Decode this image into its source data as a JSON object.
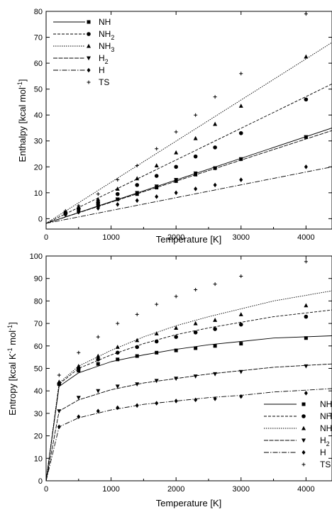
{
  "chart_data": [
    {
      "type": "line",
      "xlabel": "Temperature [K]",
      "ylabel": "Enthalpy [kcal mol",
      "ylabel_sup": "-1",
      "ylabel_end": "]",
      "xlim": [
        0,
        4400
      ],
      "ylim": [
        -4,
        80
      ],
      "xticks": [
        0,
        1000,
        2000,
        3000,
        4000
      ],
      "yticks": [
        0,
        10,
        20,
        30,
        40,
        50,
        60,
        70,
        80
      ],
      "legend_position": "top-left",
      "series": [
        {
          "name": "NH",
          "sub": "",
          "marker": "square",
          "dash": "",
          "x": [
            298,
            500,
            800,
            1100,
            1400,
            1700,
            2000,
            2300,
            2600,
            3000,
            4000
          ],
          "y": [
            2,
            3.2,
            5,
            7.5,
            9.5,
            12,
            14.5,
            17,
            19.5,
            23,
            31.5
          ],
          "line": {
            "x0": 0,
            "y0": -1.8,
            "x1": 4400,
            "y1": 35
          }
        },
        {
          "name": "NH",
          "sub": "2",
          "marker": "circle",
          "dash": "4,2",
          "x": [
            298,
            500,
            800,
            1100,
            1400,
            1700,
            2000,
            2300,
            2600,
            3000,
            4000
          ],
          "y": [
            2.2,
            3.9,
            6.2,
            9.5,
            13,
            16.5,
            20,
            24,
            27.5,
            33,
            46
          ],
          "line": {
            "x0": 0,
            "y0": -1.8,
            "x1": 4400,
            "y1": 52
          }
        },
        {
          "name": "NH",
          "sub": "3",
          "marker": "triangle",
          "dash": "1.5,1.5",
          "x": [
            298,
            500,
            800,
            1100,
            1400,
            1700,
            2000,
            2300,
            2600,
            3000,
            4000
          ],
          "y": [
            2.5,
            4.6,
            7.5,
            11.5,
            15.5,
            20.5,
            25.5,
            31,
            36.5,
            43.5,
            62.5
          ],
          "line": {
            "x0": 0,
            "y0": -1.8,
            "x1": 4400,
            "y1": 68
          }
        },
        {
          "name": "H",
          "sub": "2",
          "marker": "triangle-down",
          "dash": "6,1.5",
          "x": [
            298,
            500,
            800,
            1100,
            1400,
            1700,
            2000,
            2300,
            2600,
            3000,
            4000
          ],
          "y": [
            2,
            3.3,
            5,
            7.5,
            10,
            12.5,
            15,
            17.5,
            19.5,
            23,
            31.5
          ],
          "line": {
            "x0": 0,
            "y0": -1.8,
            "x1": 4400,
            "y1": 34
          }
        },
        {
          "name": "H",
          "sub": "",
          "marker": "diamond",
          "dash": "7,2,1.5,2",
          "x": [
            298,
            500,
            800,
            1100,
            1400,
            1700,
            2000,
            2300,
            2600,
            3000,
            4000
          ],
          "y": [
            1.5,
            2.5,
            4,
            5.5,
            7,
            8.5,
            10,
            11.5,
            13,
            15,
            20
          ],
          "line": {
            "x0": 0,
            "y0": -1.8,
            "x1": 4400,
            "y1": 20
          }
        },
        {
          "name": "TS",
          "sub": "",
          "marker": "plus",
          "dash": "",
          "x": [
            298,
            500,
            800,
            1100,
            1400,
            1700,
            2000,
            2300,
            2600,
            3000,
            4000
          ],
          "y": [
            3,
            5,
            9.5,
            15,
            20.5,
            27,
            33.5,
            40,
            47,
            56,
            79
          ],
          "line": null
        }
      ]
    },
    {
      "type": "line",
      "xlabel": "Temperature [K]",
      "ylabel": "Entropy [kcal K",
      "ylabel_sup": "-1",
      "ylabel_mid": " mol",
      "ylabel_sup2": "-1",
      "ylabel_end": "]",
      "xlim": [
        0,
        4400
      ],
      "ylim": [
        0,
        100
      ],
      "xticks": [
        0,
        1000,
        2000,
        3000,
        4000
      ],
      "yticks": [
        0,
        10,
        20,
        30,
        40,
        50,
        60,
        70,
        80,
        90,
        100
      ],
      "legend_position": "bottom-right",
      "series": [
        {
          "name": "NH",
          "sub": "",
          "marker": "square",
          "dash": "",
          "x": [
            200,
            500,
            800,
            1100,
            1400,
            1700,
            2000,
            2300,
            2600,
            3000,
            4000
          ],
          "y": [
            43,
            49,
            52,
            54,
            55.5,
            57,
            58,
            59,
            60,
            61,
            63.5
          ],
          "curve": [
            [
              0,
              0
            ],
            [
              200,
              42
            ],
            [
              500,
              48
            ],
            [
              1000,
              53
            ],
            [
              1500,
              56
            ],
            [
              2000,
              58.5
            ],
            [
              2500,
              60.5
            ],
            [
              3000,
              62
            ],
            [
              3500,
              63.5
            ],
            [
              4400,
              64.5
            ]
          ]
        },
        {
          "name": "NH",
          "sub": "2",
          "marker": "circle",
          "dash": "4,2",
          "x": [
            200,
            500,
            800,
            1100,
            1400,
            1700,
            2000,
            2300,
            2600,
            3000,
            4000
          ],
          "y": [
            43,
            50,
            54,
            57,
            59.5,
            62,
            64,
            66,
            67.5,
            69.5,
            73
          ],
          "curve": [
            [
              0,
              0
            ],
            [
              200,
              43
            ],
            [
              500,
              50
            ],
            [
              1000,
              56
            ],
            [
              1500,
              61
            ],
            [
              2000,
              65
            ],
            [
              2500,
              68
            ],
            [
              3000,
              70.5
            ],
            [
              3500,
              73
            ],
            [
              4400,
              76
            ]
          ]
        },
        {
          "name": "NH",
          "sub": "3",
          "marker": "triangle",
          "dash": "1.5,1.5",
          "x": [
            200,
            500,
            800,
            1100,
            1400,
            1700,
            2000,
            2300,
            2600,
            3000,
            4000
          ],
          "y": [
            44,
            51,
            55.5,
            59.5,
            62.5,
            65.5,
            68,
            70,
            71.5,
            74,
            78
          ],
          "curve": [
            [
              0,
              0
            ],
            [
              200,
              43.5
            ],
            [
              500,
              51
            ],
            [
              1000,
              58
            ],
            [
              1500,
              64
            ],
            [
              2000,
              69
            ],
            [
              2500,
              73
            ],
            [
              3000,
              76.5
            ],
            [
              3500,
              80
            ],
            [
              4400,
              84.5
            ]
          ]
        },
        {
          "name": "H",
          "sub": "2",
          "marker": "triangle-down",
          "dash": "6,1.5",
          "x": [
            200,
            500,
            800,
            1100,
            1400,
            1700,
            2000,
            2300,
            2600,
            3000,
            4000
          ],
          "y": [
            31,
            37,
            40,
            42,
            43,
            44.5,
            45.5,
            46.5,
            47.5,
            48.5,
            51
          ],
          "curve": [
            [
              0,
              0
            ],
            [
              200,
              31
            ],
            [
              500,
              36
            ],
            [
              1000,
              40.5
            ],
            [
              1500,
              43.5
            ],
            [
              2000,
              45.5
            ],
            [
              2500,
              47.5
            ],
            [
              3000,
              49
            ],
            [
              3500,
              50.5
            ],
            [
              4400,
              52
            ]
          ]
        },
        {
          "name": "H",
          "sub": "",
          "marker": "diamond",
          "dash": "7,2,1.5,2",
          "x": [
            200,
            500,
            800,
            1100,
            1400,
            1700,
            2000,
            2300,
            2600,
            3000,
            4000
          ],
          "y": [
            24,
            28.5,
            31,
            32.5,
            33.5,
            34.5,
            35.5,
            36,
            36.5,
            37.5,
            39
          ],
          "curve": [
            [
              0,
              0
            ],
            [
              200,
              24
            ],
            [
              500,
              28
            ],
            [
              1000,
              31.5
            ],
            [
              1500,
              34
            ],
            [
              2000,
              35.5
            ],
            [
              2500,
              37
            ],
            [
              3000,
              38
            ],
            [
              3500,
              39.5
            ],
            [
              4400,
              41
            ]
          ]
        },
        {
          "name": "TS",
          "sub": "",
          "marker": "plus",
          "dash": "",
          "x": [
            200,
            500,
            800,
            1100,
            1400,
            1700,
            2000,
            2300,
            2600,
            3000,
            4000
          ],
          "y": [
            47,
            57,
            64,
            70,
            74,
            78.5,
            82,
            85,
            87.5,
            91,
            97.5
          ],
          "curve": null
        }
      ]
    }
  ]
}
